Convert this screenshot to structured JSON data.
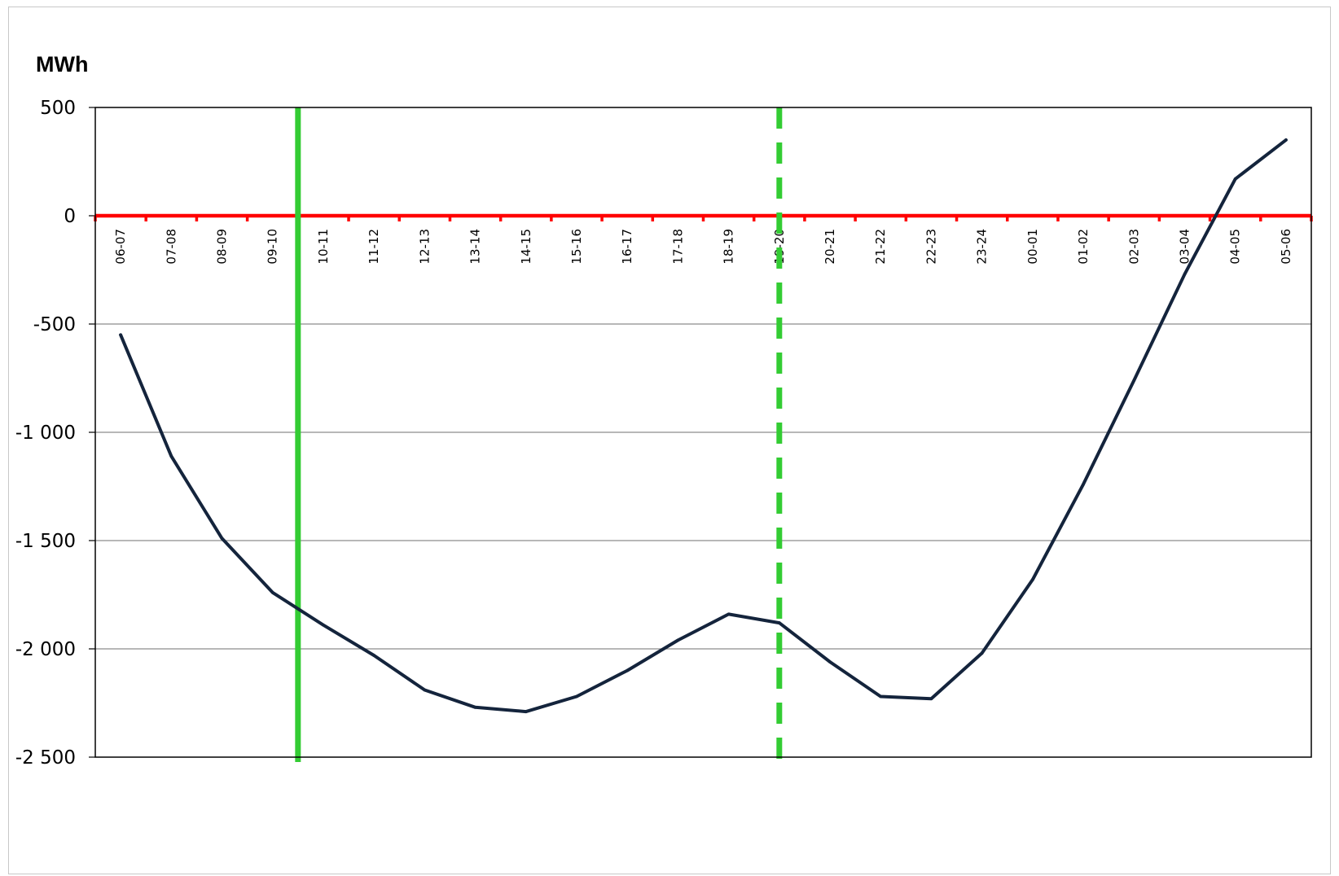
{
  "chart_data": {
    "type": "line",
    "title": "",
    "xlabel": "",
    "ylabel": "MWh",
    "ylim": [
      -2500,
      500
    ],
    "yticks": [
      500,
      0,
      -500,
      -1000,
      -1500,
      -2000,
      -2500
    ],
    "ytick_labels": [
      "500",
      "0",
      "-500",
      "-1 000",
      "-1 500",
      "-2 000",
      "-2 500"
    ],
    "grid": true,
    "legend": "none",
    "categories": [
      "06-07",
      "07-08",
      "08-09",
      "09-10",
      "10-11",
      "11-12",
      "12-13",
      "13-14",
      "14-15",
      "15-16",
      "16-17",
      "17-18",
      "18-19",
      "19-20",
      "20-21",
      "21-22",
      "22-23",
      "23-24",
      "00-01",
      "01-02",
      "02-03",
      "03-04",
      "04-05",
      "05-06"
    ],
    "series": [
      {
        "color": "#14243c",
        "values": [
          -550,
          -1110,
          -1490,
          -1740,
          -1890,
          -2030,
          -2190,
          -2270,
          -2290,
          -2220,
          -2100,
          -1960,
          -1840,
          -1880,
          -2060,
          -2220,
          -2230,
          -2020,
          -1680,
          -1240,
          -760,
          -270,
          170,
          350
        ]
      }
    ],
    "reference_lines": {
      "zero_line": {
        "y": 0,
        "color": "#ff0000"
      },
      "solid_marker": {
        "x_category": 3.5,
        "color": "#33cc33",
        "style": "solid"
      },
      "dashed_marker": {
        "x_category": 13.0,
        "color": "#33cc33",
        "style": "dashed"
      }
    }
  }
}
